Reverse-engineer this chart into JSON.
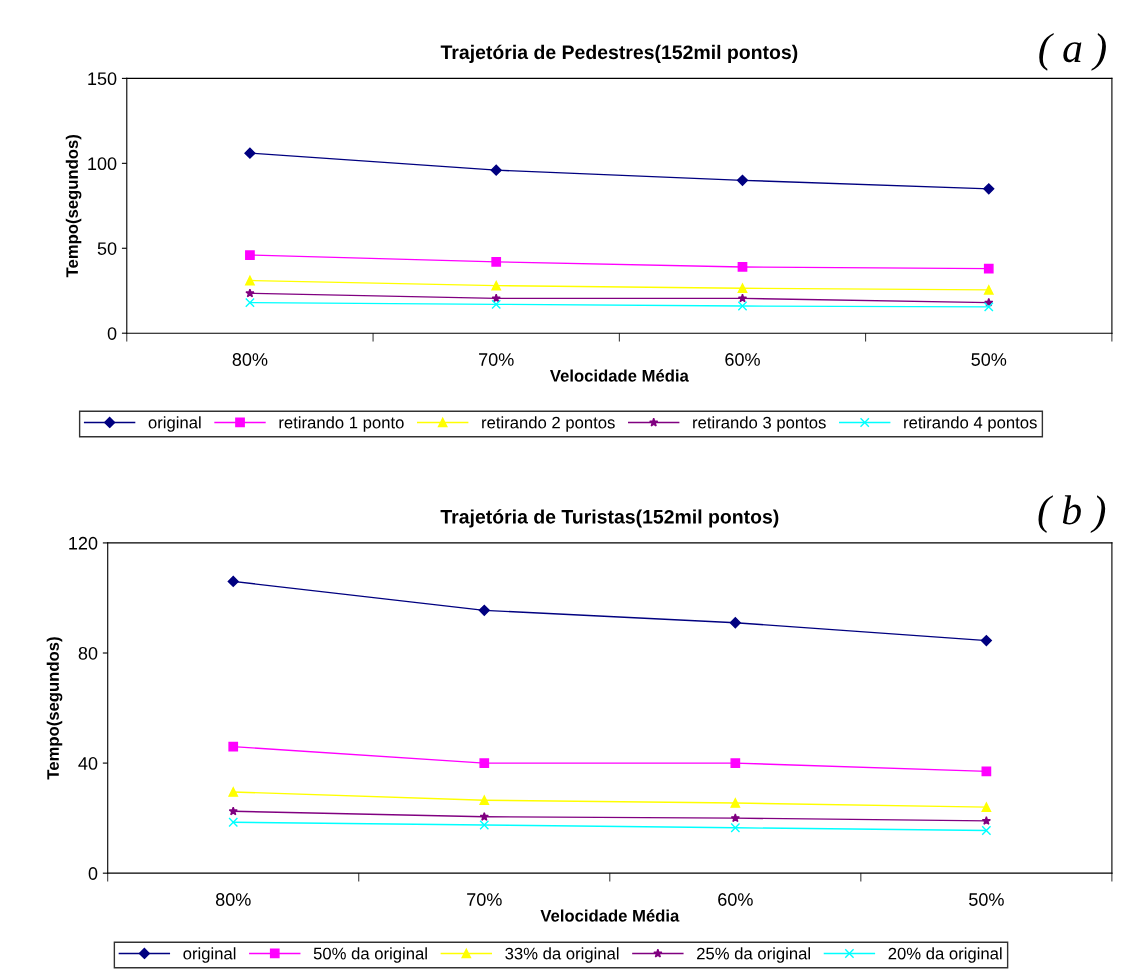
{
  "chart_data": [
    {
      "type": "line",
      "title": "Trajetória de Pedestres(152mil pontos)",
      "xlabel": "Velocidade Média",
      "ylabel": "Tempo(segundos)",
      "annotations": [
        "( a )"
      ],
      "categories": [
        "80%",
        "70%",
        "60%",
        "50%"
      ],
      "ylim": [
        0,
        150
      ],
      "yticks": [
        0,
        50,
        100,
        150
      ],
      "grid": false,
      "legend": "bottom",
      "series": [
        {
          "name": "original",
          "color": "#000080",
          "marker": "diamond",
          "values": [
            106,
            96,
            90,
            85
          ]
        },
        {
          "name": "retirando 1 ponto",
          "color": "#ff00ff",
          "marker": "square",
          "values": [
            46,
            42,
            39,
            38
          ]
        },
        {
          "name": "retirando 2 pontos",
          "color": "#ffff00",
          "marker": "triangle",
          "values": [
            31,
            28,
            26.5,
            25.5
          ]
        },
        {
          "name": "retirando 3 pontos",
          "color": "#800080",
          "marker": "star",
          "values": [
            23.5,
            20.5,
            20.5,
            18
          ]
        },
        {
          "name": "retirando 4 pontos",
          "color": "#00ffff",
          "marker": "cross",
          "values": [
            18,
            17,
            16,
            15.5
          ]
        }
      ]
    },
    {
      "type": "line",
      "title": "Trajetória de Turistas(152mil pontos)",
      "xlabel": "Velocidade Média",
      "ylabel": "Tempo(segundos)",
      "annotations": [
        "( b )"
      ],
      "categories": [
        "80%",
        "70%",
        "60%",
        "50%"
      ],
      "ylim": [
        0,
        120
      ],
      "yticks": [
        0,
        40,
        80,
        120
      ],
      "grid": false,
      "legend": "bottom",
      "series": [
        {
          "name": "original",
          "color": "#000080",
          "marker": "diamond",
          "values": [
            106,
            95.5,
            91,
            84.5
          ]
        },
        {
          "name": "50% da original",
          "color": "#ff00ff",
          "marker": "square",
          "values": [
            46,
            40,
            40,
            37
          ]
        },
        {
          "name": "33% da original",
          "color": "#ffff00",
          "marker": "triangle",
          "values": [
            29.5,
            26.5,
            25.5,
            24
          ]
        },
        {
          "name": "25% da original",
          "color": "#800080",
          "marker": "star",
          "values": [
            22.5,
            20.5,
            20,
            19
          ]
        },
        {
          "name": "20% da original",
          "color": "#00ffff",
          "marker": "cross",
          "values": [
            18.5,
            17.5,
            16.5,
            15.5
          ]
        }
      ]
    }
  ]
}
